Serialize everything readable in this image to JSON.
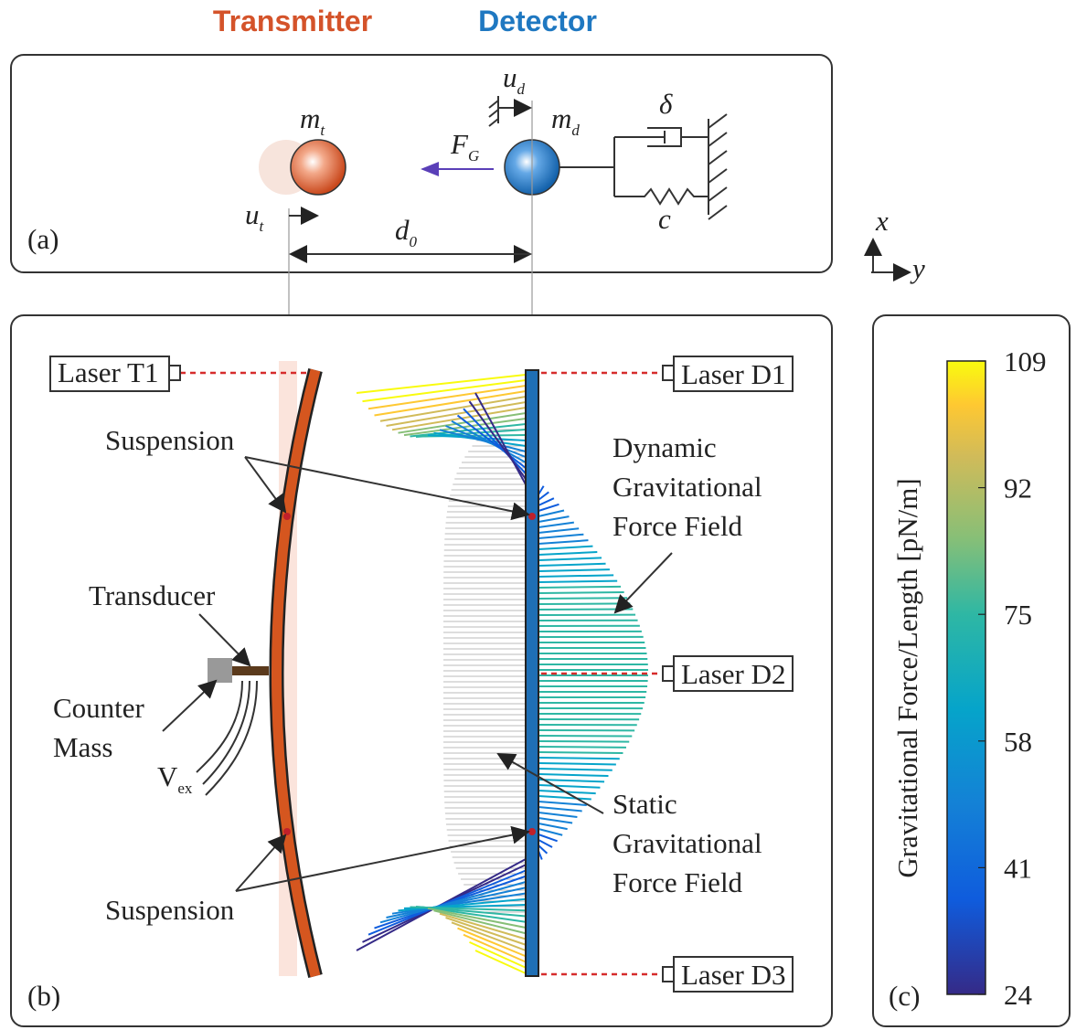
{
  "header": {
    "transmitter": "Transmitter",
    "detector": "Detector"
  },
  "panel_a": {
    "label": "(a)",
    "transmitter_mass": {
      "symbol": "m",
      "subscript": "t"
    },
    "detector_mass": {
      "symbol": "m",
      "subscript": "d"
    },
    "transmitter_displacement": {
      "symbol": "u",
      "subscript": "t"
    },
    "detector_displacement": {
      "symbol": "u",
      "subscript": "d"
    },
    "force": {
      "symbol": "F",
      "subscript": "G"
    },
    "distance": {
      "symbol": "d",
      "subscript": "0"
    },
    "damping": "δ",
    "stiffness": "c"
  },
  "axes": {
    "x": "x",
    "y": "y"
  },
  "panel_b": {
    "label": "(b)",
    "lasers": [
      "Laser T1",
      "Laser D1",
      "Laser D2",
      "Laser D3"
    ],
    "suspension_top": "Suspension",
    "suspension_bottom": "Suspension",
    "transducer": "Transducer",
    "counter_mass": [
      "Counter",
      "Mass"
    ],
    "voltage": {
      "symbol": "V",
      "subscript": "ex"
    },
    "dynamic_field": [
      "Dynamic",
      "Gravitational",
      "Force Field"
    ],
    "static_field": [
      "Static",
      "Gravitational",
      "Force Field"
    ]
  },
  "panel_c": {
    "label": "(c)",
    "colorbar_label": "Gravitational Force/Length [pN/m]",
    "lim": [
      24,
      109
    ],
    "ticks": [
      109,
      92,
      75,
      58,
      41,
      24
    ]
  }
}
